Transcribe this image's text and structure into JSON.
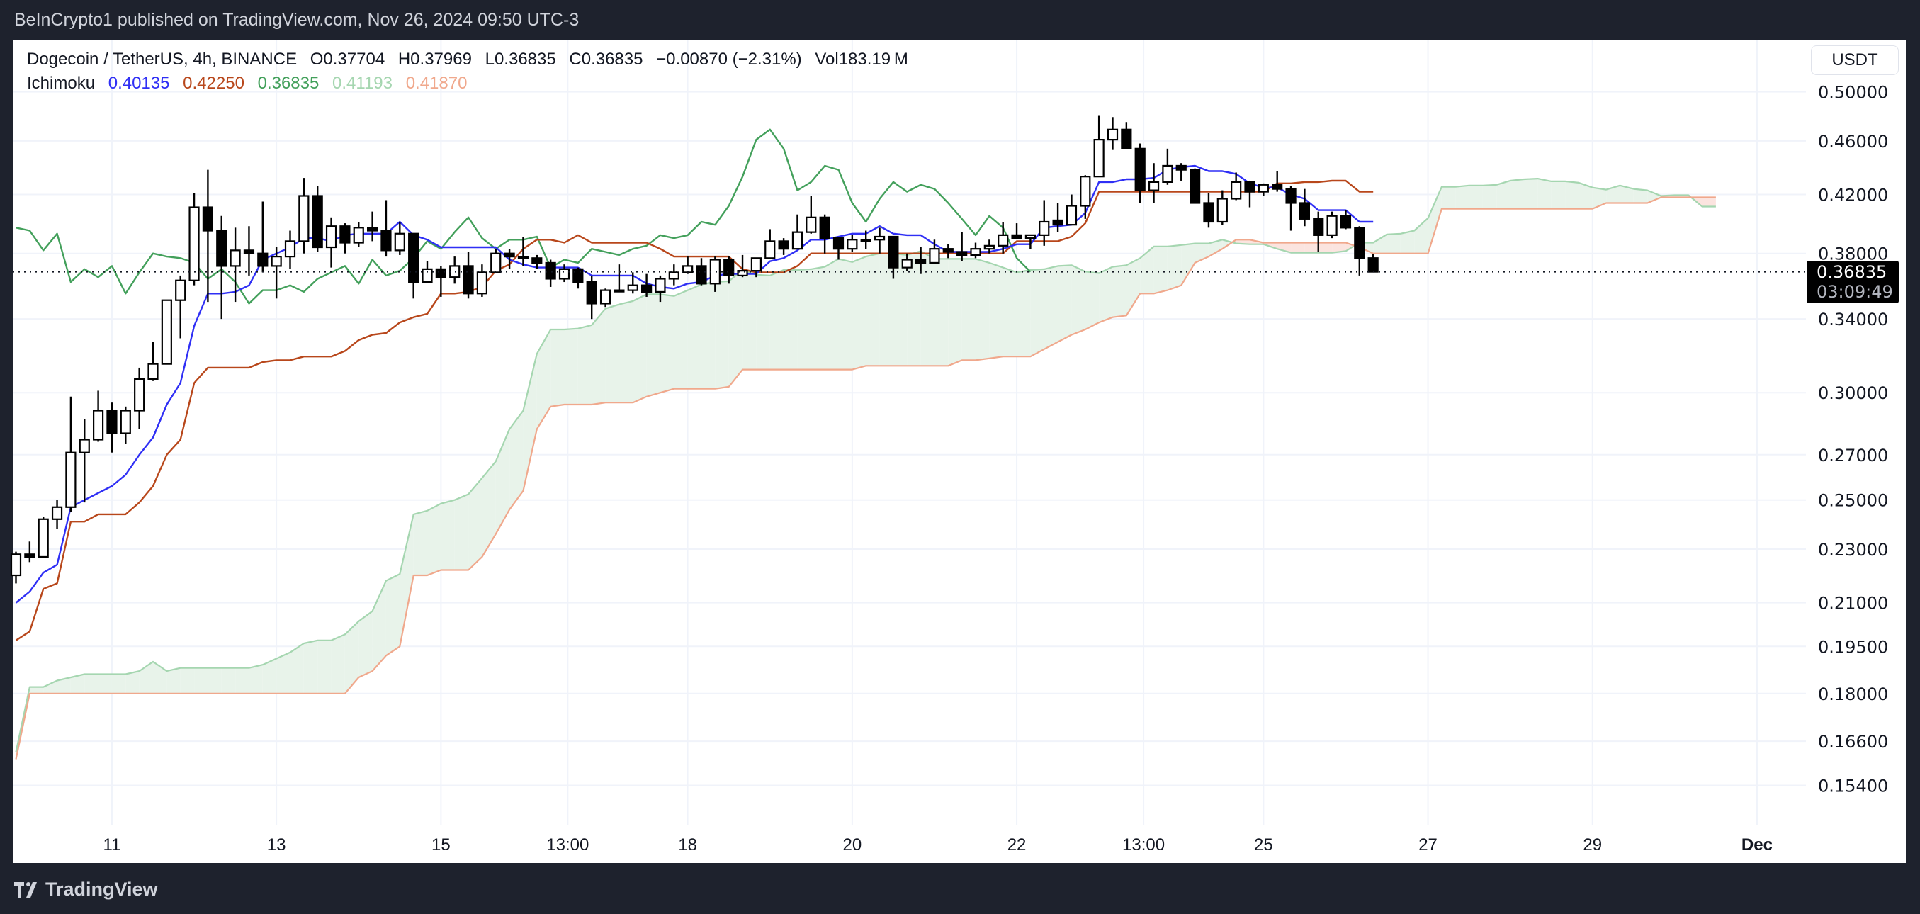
{
  "header": {
    "published": "BeInCrypto1 published on TradingView.com, Nov 26, 2024 09:50 UTC-3"
  },
  "legend": {
    "symbol": "Dogecoin / TetherUS, 4h, BINANCE",
    "open": "O0.37704",
    "high": "H0.37969",
    "low": "L0.36835",
    "close": "C0.36835",
    "change": "−0.00870 (−2.31%)",
    "volume": "Vol183.19 M",
    "indicator": "Ichimoku",
    "values": [
      {
        "text": "0.40135",
        "color": "#2f2ff5"
      },
      {
        "text": "0.42250",
        "color": "#b8471b"
      },
      {
        "text": "0.36835",
        "color": "#43a05b"
      },
      {
        "text": "0.41193",
        "color": "#a5d6b0"
      },
      {
        "text": "0.41870",
        "color": "#f0a88c"
      }
    ]
  },
  "currency_button": "USDT",
  "last_price": {
    "price": "0.36835",
    "countdown": "03:09:49"
  },
  "footer": {
    "brand": "TradingView",
    "logo_mark": "17"
  },
  "chart_data": {
    "type": "candlestick",
    "scale": "log",
    "start": "2024-11-09T20:00",
    "interval_hours": 4,
    "grid": true,
    "ylim": [
      0.148,
      0.51
    ],
    "y_ticks": [
      "0.50000",
      "0.46000",
      "0.42000",
      "0.38000",
      "0.34000",
      "0.30000",
      "0.27000",
      "0.25000",
      "0.23000",
      "0.21000",
      "0.19500",
      "0.18000",
      "0.16600",
      "0.15400"
    ],
    "x_ticks": [
      {
        "label": "11",
        "time": "2024-11-11T00:00"
      },
      {
        "label": "13",
        "time": "2024-11-13T00:00"
      },
      {
        "label": "15",
        "time": "2024-11-15T00:00"
      },
      {
        "label": "13:00",
        "time": "2024-11-16T13:00"
      },
      {
        "label": "18",
        "time": "2024-11-18T00:00"
      },
      {
        "label": "20",
        "time": "2024-11-20T00:00"
      },
      {
        "label": "22",
        "time": "2024-11-22T00:00"
      },
      {
        "label": "13:00",
        "time": "2024-11-23T13:00"
      },
      {
        "label": "25",
        "time": "2024-11-25T00:00"
      },
      {
        "label": "27",
        "time": "2024-11-27T00:00"
      },
      {
        "label": "29",
        "time": "2024-11-29T00:00"
      },
      {
        "label": "Dec",
        "time": "2024-12-01T00:00"
      }
    ],
    "colors": {
      "up_body": "#ffffff",
      "down_body": "#000000",
      "wick": "#000000",
      "tenkan": "#2f2ff5",
      "kijun": "#b8471b",
      "chikou": "#43a05b",
      "span_a": "#a5d6b0",
      "span_b": "#f0a88c",
      "cloud_bull": "#e8f3ea",
      "cloud_bear": "#fbe4df"
    },
    "ohlc": [
      [
        0.22,
        0.229,
        0.217,
        0.228
      ],
      [
        0.228,
        0.233,
        0.225,
        0.227
      ],
      [
        0.227,
        0.243,
        0.227,
        0.242
      ],
      [
        0.242,
        0.25,
        0.238,
        0.247
      ],
      [
        0.247,
        0.298,
        0.245,
        0.271
      ],
      [
        0.271,
        0.287,
        0.249,
        0.277
      ],
      [
        0.277,
        0.301,
        0.276,
        0.291
      ],
      [
        0.291,
        0.295,
        0.271,
        0.28
      ],
      [
        0.28,
        0.293,
        0.275,
        0.291
      ],
      [
        0.291,
        0.313,
        0.282,
        0.307
      ],
      [
        0.307,
        0.327,
        0.306,
        0.315
      ],
      [
        0.315,
        0.351,
        0.315,
        0.351
      ],
      [
        0.351,
        0.366,
        0.329,
        0.363
      ],
      [
        0.363,
        0.421,
        0.36,
        0.411
      ],
      [
        0.411,
        0.438,
        0.35,
        0.395
      ],
      [
        0.395,
        0.405,
        0.34,
        0.372
      ],
      [
        0.372,
        0.397,
        0.35,
        0.382
      ],
      [
        0.382,
        0.398,
        0.366,
        0.38
      ],
      [
        0.38,
        0.415,
        0.368,
        0.372
      ],
      [
        0.372,
        0.384,
        0.352,
        0.378
      ],
      [
        0.378,
        0.395,
        0.37,
        0.388
      ],
      [
        0.388,
        0.432,
        0.38,
        0.419
      ],
      [
        0.419,
        0.426,
        0.381,
        0.384
      ],
      [
        0.384,
        0.404,
        0.371,
        0.398
      ],
      [
        0.398,
        0.4,
        0.38,
        0.387
      ],
      [
        0.387,
        0.401,
        0.384,
        0.397
      ],
      [
        0.397,
        0.408,
        0.388,
        0.395
      ],
      [
        0.395,
        0.416,
        0.378,
        0.382
      ],
      [
        0.382,
        0.401,
        0.379,
        0.393
      ],
      [
        0.393,
        0.393,
        0.352,
        0.362
      ],
      [
        0.362,
        0.375,
        0.362,
        0.37
      ],
      [
        0.37,
        0.372,
        0.353,
        0.365
      ],
      [
        0.365,
        0.378,
        0.361,
        0.372
      ],
      [
        0.372,
        0.381,
        0.352,
        0.355
      ],
      [
        0.355,
        0.373,
        0.353,
        0.368
      ],
      [
        0.368,
        0.383,
        0.368,
        0.38
      ],
      [
        0.38,
        0.383,
        0.37,
        0.378
      ],
      [
        0.378,
        0.391,
        0.372,
        0.377
      ],
      [
        0.377,
        0.379,
        0.37,
        0.374
      ],
      [
        0.374,
        0.376,
        0.359,
        0.364
      ],
      [
        0.364,
        0.373,
        0.362,
        0.37
      ],
      [
        0.37,
        0.371,
        0.358,
        0.362
      ],
      [
        0.362,
        0.366,
        0.34,
        0.349
      ],
      [
        0.349,
        0.358,
        0.347,
        0.357
      ],
      [
        0.357,
        0.373,
        0.356,
        0.357
      ],
      [
        0.357,
        0.368,
        0.355,
        0.36
      ],
      [
        0.36,
        0.367,
        0.353,
        0.356
      ],
      [
        0.356,
        0.366,
        0.35,
        0.364
      ],
      [
        0.364,
        0.373,
        0.36,
        0.368
      ],
      [
        0.368,
        0.378,
        0.367,
        0.372
      ],
      [
        0.372,
        0.377,
        0.36,
        0.361
      ],
      [
        0.361,
        0.378,
        0.356,
        0.376
      ],
      [
        0.376,
        0.378,
        0.361,
        0.366
      ],
      [
        0.366,
        0.379,
        0.365,
        0.369
      ],
      [
        0.369,
        0.377,
        0.365,
        0.377
      ],
      [
        0.377,
        0.396,
        0.377,
        0.388
      ],
      [
        0.388,
        0.39,
        0.379,
        0.383
      ],
      [
        0.383,
        0.406,
        0.383,
        0.394
      ],
      [
        0.394,
        0.419,
        0.393,
        0.404
      ],
      [
        0.404,
        0.406,
        0.38,
        0.39
      ],
      [
        0.39,
        0.391,
        0.376,
        0.383
      ],
      [
        0.383,
        0.392,
        0.381,
        0.389
      ],
      [
        0.389,
        0.395,
        0.383,
        0.389
      ],
      [
        0.389,
        0.397,
        0.38,
        0.391
      ],
      [
        0.391,
        0.391,
        0.364,
        0.371
      ],
      [
        0.371,
        0.38,
        0.369,
        0.376
      ],
      [
        0.376,
        0.384,
        0.367,
        0.374
      ],
      [
        0.374,
        0.389,
        0.374,
        0.383
      ],
      [
        0.383,
        0.386,
        0.377,
        0.381
      ],
      [
        0.381,
        0.394,
        0.375,
        0.379
      ],
      [
        0.379,
        0.387,
        0.377,
        0.383
      ],
      [
        0.383,
        0.389,
        0.38,
        0.385
      ],
      [
        0.385,
        0.401,
        0.38,
        0.392
      ],
      [
        0.392,
        0.4,
        0.39,
        0.39
      ],
      [
        0.39,
        0.392,
        0.383,
        0.392
      ],
      [
        0.392,
        0.416,
        0.385,
        0.401
      ],
      [
        0.402,
        0.414,
        0.394,
        0.399
      ],
      [
        0.399,
        0.42,
        0.399,
        0.412
      ],
      [
        0.412,
        0.434,
        0.403,
        0.433
      ],
      [
        0.433,
        0.48,
        0.433,
        0.461
      ],
      [
        0.461,
        0.479,
        0.453,
        0.469
      ],
      [
        0.469,
        0.475,
        0.454,
        0.454
      ],
      [
        0.454,
        0.458,
        0.414,
        0.423
      ],
      [
        0.423,
        0.443,
        0.414,
        0.429
      ],
      [
        0.429,
        0.454,
        0.427,
        0.441
      ],
      [
        0.441,
        0.443,
        0.43,
        0.438
      ],
      [
        0.438,
        0.439,
        0.414,
        0.414
      ],
      [
        0.414,
        0.421,
        0.397,
        0.401
      ],
      [
        0.401,
        0.423,
        0.399,
        0.417
      ],
      [
        0.417,
        0.436,
        0.416,
        0.429
      ],
      [
        0.429,
        0.43,
        0.411,
        0.422
      ],
      [
        0.422,
        0.428,
        0.419,
        0.427
      ],
      [
        0.427,
        0.437,
        0.422,
        0.424
      ],
      [
        0.424,
        0.426,
        0.395,
        0.414
      ],
      [
        0.414,
        0.424,
        0.398,
        0.403
      ],
      [
        0.403,
        0.408,
        0.381,
        0.392
      ],
      [
        0.392,
        0.408,
        0.39,
        0.405
      ],
      [
        0.405,
        0.409,
        0.396,
        0.397
      ],
      [
        0.397,
        0.398,
        0.366,
        0.377
      ],
      [
        0.37704,
        0.37969,
        0.36835,
        0.36835
      ]
    ],
    "ichimoku": {
      "displacement": 26,
      "tenkan": [
        0.21,
        0.214,
        0.221,
        0.224,
        0.247,
        0.25,
        0.253,
        0.256,
        0.261,
        0.27,
        0.278,
        0.294,
        0.305,
        0.336,
        0.355,
        0.355,
        0.356,
        0.36,
        0.376,
        0.38,
        0.384,
        0.39,
        0.39,
        0.388,
        0.392,
        0.393,
        0.393,
        0.393,
        0.401,
        0.392,
        0.389,
        0.384,
        0.384,
        0.384,
        0.384,
        0.384,
        0.376,
        0.373,
        0.371,
        0.371,
        0.371,
        0.371,
        0.366,
        0.366,
        0.366,
        0.366,
        0.361,
        0.359,
        0.358,
        0.361,
        0.362,
        0.366,
        0.367,
        0.367,
        0.367,
        0.375,
        0.377,
        0.382,
        0.389,
        0.389,
        0.391,
        0.393,
        0.393,
        0.398,
        0.393,
        0.392,
        0.392,
        0.386,
        0.381,
        0.381,
        0.381,
        0.381,
        0.383,
        0.386,
        0.386,
        0.397,
        0.398,
        0.399,
        0.407,
        0.429,
        0.429,
        0.431,
        0.431,
        0.432,
        0.438,
        0.44,
        0.441,
        0.437,
        0.437,
        0.435,
        0.428,
        0.425,
        0.425,
        0.42,
        0.417,
        0.409,
        0.409,
        0.409,
        0.401,
        0.401
      ],
      "kijun": [
        0.197,
        0.2,
        0.215,
        0.217,
        0.241,
        0.241,
        0.244,
        0.244,
        0.244,
        0.249,
        0.256,
        0.27,
        0.277,
        0.305,
        0.313,
        0.313,
        0.313,
        0.313,
        0.316,
        0.317,
        0.317,
        0.319,
        0.319,
        0.319,
        0.322,
        0.328,
        0.331,
        0.332,
        0.338,
        0.341,
        0.343,
        0.355,
        0.355,
        0.356,
        0.359,
        0.369,
        0.373,
        0.383,
        0.389,
        0.389,
        0.387,
        0.392,
        0.387,
        0.387,
        0.387,
        0.387,
        0.387,
        0.383,
        0.378,
        0.378,
        0.378,
        0.378,
        0.378,
        0.37,
        0.368,
        0.368,
        0.368,
        0.372,
        0.38,
        0.38,
        0.38,
        0.38,
        0.38,
        0.38,
        0.38,
        0.38,
        0.38,
        0.38,
        0.38,
        0.38,
        0.38,
        0.38,
        0.38,
        0.388,
        0.388,
        0.388,
        0.388,
        0.391,
        0.4,
        0.422,
        0.422,
        0.422,
        0.422,
        0.422,
        0.422,
        0.422,
        0.422,
        0.422,
        0.422,
        0.422,
        0.422,
        0.422,
        0.428,
        0.428,
        0.429,
        0.429,
        0.43,
        0.43,
        0.422,
        0.422
      ],
      "span_a_leading": [
        0.163,
        0.182,
        0.182,
        0.184,
        0.185,
        0.186,
        0.186,
        0.186,
        0.186,
        0.187,
        0.19,
        0.187,
        0.188,
        0.188,
        0.188,
        0.188,
        0.188,
        0.188,
        0.189,
        0.191,
        0.193,
        0.196,
        0.197,
        0.197,
        0.199
      ],
      "span_b": [
        0.161,
        0.18,
        0.18,
        0.18,
        0.18,
        0.18,
        0.18,
        0.18,
        0.18,
        0.18,
        0.18,
        0.18,
        0.18,
        0.18,
        0.18,
        0.18,
        0.18,
        0.18,
        0.18,
        0.18,
        0.18,
        0.18,
        0.18,
        0.18,
        0.18,
        0.185,
        0.187,
        0.192,
        0.195,
        0.22,
        0.22,
        0.222,
        0.222,
        0.222,
        0.227,
        0.236,
        0.246,
        0.254,
        0.282,
        0.293,
        0.294,
        0.294,
        0.294,
        0.295,
        0.295,
        0.295,
        0.298,
        0.3,
        0.302,
        0.302,
        0.302,
        0.302,
        0.303,
        0.312,
        0.312,
        0.312,
        0.312,
        0.312,
        0.312,
        0.312,
        0.312,
        0.312,
        0.314,
        0.314,
        0.314,
        0.314,
        0.314,
        0.314,
        0.314,
        0.317,
        0.317,
        0.318,
        0.319,
        0.319,
        0.319,
        0.323,
        0.327,
        0.331,
        0.334,
        0.338,
        0.341,
        0.342,
        0.355,
        0.355,
        0.357,
        0.36,
        0.374,
        0.378,
        0.383,
        0.389,
        0.389,
        0.387,
        0.387,
        0.387,
        0.387,
        0.387,
        0.387,
        0.387,
        0.384,
        0.38,
        0.38,
        0.38,
        0.38,
        0.38,
        0.41,
        0.41,
        0.41,
        0.41,
        0.41,
        0.41,
        0.41,
        0.41,
        0.41,
        0.41,
        0.41,
        0.41,
        0.414,
        0.414,
        0.414,
        0.414,
        0.418,
        0.418,
        0.418,
        0.418,
        0.418
      ]
    }
  }
}
